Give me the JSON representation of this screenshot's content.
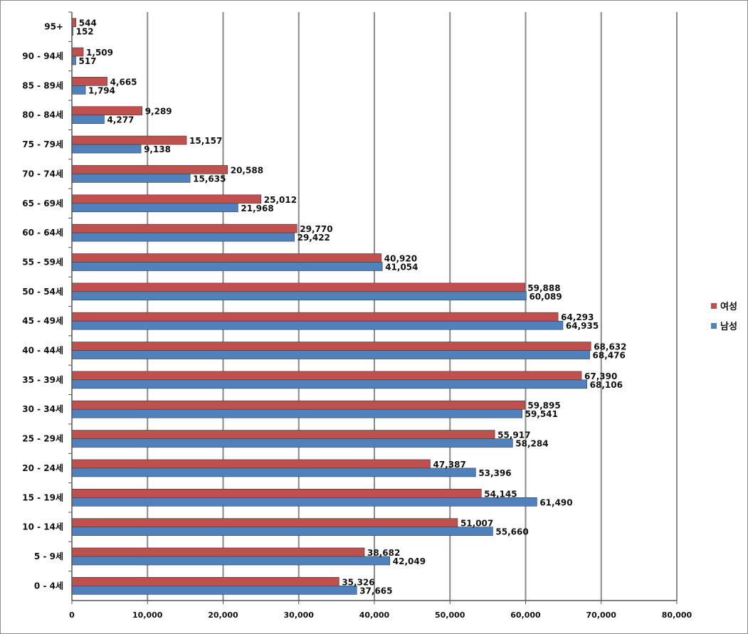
{
  "chart_data": {
    "type": "bar",
    "orientation": "horizontal",
    "categories": [
      "95+",
      "90 - 94세",
      "85 - 89세",
      "80 - 84세",
      "75 - 79세",
      "70 - 74세",
      "65 - 69세",
      "60 - 64세",
      "55 - 59세",
      "50 - 54세",
      "45 - 49세",
      "40 - 44세",
      "35 - 39세",
      "30 - 34세",
      "25 - 29세",
      "20 - 24세",
      "15 - 19세",
      "10 - 14세",
      "5 - 9세",
      "0 - 4세"
    ],
    "series": [
      {
        "name": "여성",
        "color": "#c0504d",
        "values": [
          544,
          1509,
          4665,
          9289,
          15157,
          20588,
          25012,
          29770,
          40920,
          59888,
          64293,
          68632,
          67390,
          59895,
          55917,
          47387,
          54145,
          51007,
          38682,
          35326
        ],
        "labels": [
          "544",
          "1,509",
          "4,665",
          "9,289",
          "15,157",
          "20,588",
          "25,012",
          "29,770",
          "40,920",
          "59,888",
          "64,293",
          "68,632",
          "67,390",
          "59,895",
          "55,917",
          "47,387",
          "54,145",
          "51,007",
          "38,682",
          "35,326"
        ]
      },
      {
        "name": "남성",
        "color": "#4f81bd",
        "values": [
          152,
          517,
          1794,
          4277,
          9138,
          15635,
          21968,
          29422,
          41054,
          60089,
          64935,
          68476,
          68106,
          59541,
          58284,
          53396,
          61490,
          55660,
          42049,
          37665
        ],
        "labels": [
          "152",
          "517",
          "1,794",
          "4,277",
          "9,138",
          "15,635",
          "21,968",
          "29,422",
          "41,054",
          "60,089",
          "64,935",
          "68,476",
          "68,106",
          "59,541",
          "58,284",
          "53,396",
          "61,490",
          "55,660",
          "42,049",
          "37,665"
        ]
      }
    ],
    "xlim": [
      0,
      80000
    ],
    "xticks": [
      0,
      10000,
      20000,
      30000,
      40000,
      50000,
      60000,
      70000,
      80000
    ],
    "xtick_labels": [
      "0",
      "10,000",
      "20,000",
      "30,000",
      "40,000",
      "50,000",
      "60,000",
      "70,000",
      "80,000"
    ],
    "grid": "vertical",
    "legend_position": "right",
    "title": "",
    "xlabel": "",
    "ylabel": ""
  }
}
